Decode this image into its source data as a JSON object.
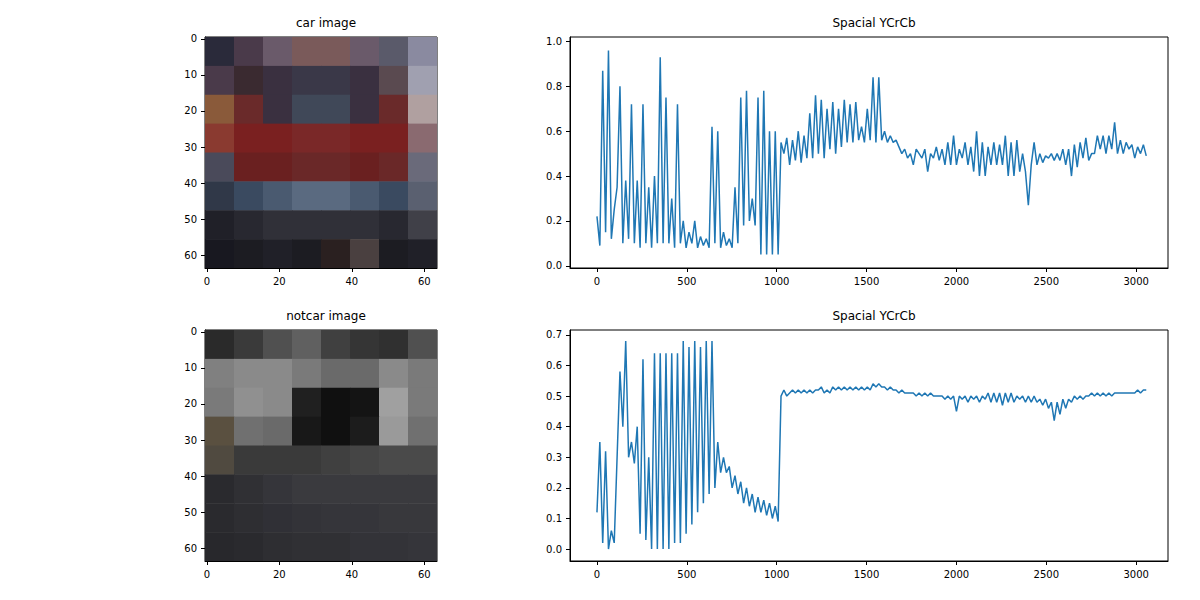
{
  "chart_data": [
    {
      "type": "image",
      "title": "car image",
      "xlim": [
        -0.5,
        63.5
      ],
      "ylim": [
        63.5,
        -0.5
      ],
      "xticks": [
        0,
        20,
        40,
        60
      ],
      "yticks": [
        0,
        10,
        20,
        30,
        40,
        50,
        60
      ],
      "pixels": [
        [
          "#2a2a3a",
          "#4a3a4a",
          "#6a5a6a",
          "#7a5a5a",
          "#7a5a5a",
          "#6a5a6a",
          "#5a5a6a",
          "#8a8aa0"
        ],
        [
          "#4a3a4a",
          "#3a2a30",
          "#3a3040",
          "#3a3848",
          "#3a3848",
          "#3a3040",
          "#5a4a50",
          "#a0a0b0"
        ],
        [
          "#8a5a3a",
          "#6a2a2a",
          "#3a3040",
          "#404858",
          "#404858",
          "#3a3040",
          "#6a2a2a",
          "#b0a0a0"
        ],
        [
          "#8a3a30",
          "#7a2020",
          "#7a2020",
          "#7a2828",
          "#7a2828",
          "#7a2020",
          "#7a2020",
          "#8a6a70"
        ],
        [
          "#4a4a5a",
          "#6a2020",
          "#6a2020",
          "#6a2828",
          "#6a2828",
          "#6a2020",
          "#6a2828",
          "#6a6a7a"
        ],
        [
          "#303848",
          "#3a4a60",
          "#4a5a70",
          "#5a6a80",
          "#5a6a80",
          "#4a5a70",
          "#3a4a60",
          "#5a6070"
        ],
        [
          "#202028",
          "#282830",
          "#303038",
          "#303038",
          "#303038",
          "#303038",
          "#282830",
          "#404048"
        ],
        [
          "#181820",
          "#1c1c22",
          "#202028",
          "#1c1c22",
          "#2a2020",
          "#4a4040",
          "#1c1c22",
          "#202028"
        ]
      ]
    },
    {
      "type": "line",
      "title": "Spacial YCrCb",
      "color": "#1f77b4",
      "grid": false,
      "xlim": [
        -150,
        3177
      ],
      "ylim": [
        -0.01,
        1.02
      ],
      "xticks": [
        0,
        500,
        1000,
        1500,
        2000,
        2500,
        3000
      ],
      "yticks": [
        {
          "value": 0,
          "label": "0.0"
        },
        0.2,
        0.4,
        0.6,
        0.8,
        {
          "value": 1,
          "label": "1.0"
        }
      ],
      "x": [
        0,
        16,
        32,
        48,
        64,
        80,
        96,
        112,
        128,
        144,
        160,
        176,
        192,
        208,
        224,
        240,
        256,
        272,
        288,
        304,
        320,
        336,
        352,
        368,
        384,
        400,
        416,
        432,
        448,
        464,
        480,
        496,
        512,
        528,
        544,
        560,
        576,
        592,
        608,
        624,
        640,
        656,
        672,
        688,
        704,
        720,
        736,
        752,
        768,
        784,
        800,
        816,
        832,
        848,
        864,
        880,
        896,
        912,
        928,
        944,
        960,
        976,
        992,
        1008,
        1024,
        1040,
        1056,
        1072,
        1088,
        1104,
        1120,
        1136,
        1152,
        1168,
        1184,
        1200,
        1216,
        1232,
        1248,
        1264,
        1280,
        1296,
        1312,
        1328,
        1344,
        1360,
        1376,
        1392,
        1408,
        1424,
        1440,
        1456,
        1472,
        1488,
        1504,
        1520,
        1536,
        1552,
        1568,
        1584,
        1600,
        1616,
        1632,
        1648,
        1664,
        1680,
        1696,
        1712,
        1728,
        1744,
        1760,
        1776,
        1792,
        1808,
        1824,
        1840,
        1856,
        1872,
        1888,
        1904,
        1920,
        1936,
        1952,
        1968,
        1984,
        2000,
        2016,
        2032,
        2048,
        2064,
        2080,
        2096,
        2112,
        2128,
        2144,
        2160,
        2176,
        2192,
        2208,
        2224,
        2240,
        2256,
        2272,
        2288,
        2304,
        2320,
        2336,
        2352,
        2368,
        2384,
        2400,
        2416,
        2432,
        2448,
        2464,
        2480,
        2496,
        2512,
        2528,
        2544,
        2560,
        2576,
        2592,
        2608,
        2624,
        2640,
        2656,
        2672,
        2688,
        2704,
        2720,
        2736,
        2752,
        2768,
        2784,
        2800,
        2816,
        2832,
        2848,
        2864,
        2880,
        2896,
        2912,
        2928,
        2944,
        2960,
        2976,
        2992,
        3008,
        3024,
        3040,
        3056
      ],
      "values": [
        0.22,
        0.09,
        0.87,
        0.15,
        0.96,
        0.12,
        0.25,
        0.35,
        0.8,
        0.1,
        0.38,
        0.12,
        0.72,
        0.1,
        0.38,
        0.08,
        0.72,
        0.1,
        0.35,
        0.08,
        0.4,
        0.1,
        0.93,
        0.1,
        0.75,
        0.1,
        0.3,
        0.08,
        0.72,
        0.1,
        0.2,
        0.08,
        0.15,
        0.1,
        0.2,
        0.08,
        0.13,
        0.09,
        0.12,
        0.08,
        0.62,
        0.1,
        0.6,
        0.08,
        0.15,
        0.09,
        0.12,
        0.08,
        0.35,
        0.1,
        0.75,
        0.18,
        0.78,
        0.2,
        0.3,
        0.18,
        0.75,
        0.05,
        0.78,
        0.05,
        0.6,
        0.05,
        0.6,
        0.05,
        0.55,
        0.5,
        0.57,
        0.45,
        0.56,
        0.47,
        0.6,
        0.46,
        0.58,
        0.48,
        0.68,
        0.48,
        0.76,
        0.5,
        0.74,
        0.48,
        0.7,
        0.52,
        0.73,
        0.5,
        0.7,
        0.53,
        0.74,
        0.55,
        0.72,
        0.55,
        0.73,
        0.56,
        0.62,
        0.55,
        0.7,
        0.56,
        0.84,
        0.55,
        0.84,
        0.56,
        0.6,
        0.55,
        0.58,
        0.55,
        0.56,
        0.53,
        0.5,
        0.52,
        0.48,
        0.5,
        0.45,
        0.52,
        0.5,
        0.48,
        0.52,
        0.42,
        0.5,
        0.48,
        0.53,
        0.47,
        0.52,
        0.45,
        0.55,
        0.45,
        0.58,
        0.45,
        0.52,
        0.48,
        0.55,
        0.45,
        0.53,
        0.42,
        0.6,
        0.4,
        0.55,
        0.4,
        0.53,
        0.45,
        0.55,
        0.45,
        0.54,
        0.45,
        0.58,
        0.4,
        0.55,
        0.4,
        0.56,
        0.42,
        0.5,
        0.42,
        0.27,
        0.45,
        0.55,
        0.45,
        0.5,
        0.46,
        0.49,
        0.48,
        0.5,
        0.47,
        0.5,
        0.47,
        0.52,
        0.45,
        0.52,
        0.4,
        0.54,
        0.44,
        0.55,
        0.48,
        0.57,
        0.47,
        0.5,
        0.5,
        0.58,
        0.52,
        0.58,
        0.5,
        0.58,
        0.52,
        0.64,
        0.5,
        0.56,
        0.5,
        0.55,
        0.52,
        0.54,
        0.48,
        0.53,
        0.5,
        0.54,
        0.49
      ]
    },
    {
      "type": "image",
      "title": "notcar image",
      "xlim": [
        -0.5,
        63.5
      ],
      "ylim": [
        63.5,
        -0.5
      ],
      "xticks": [
        0,
        20,
        40,
        60
      ],
      "yticks": [
        0,
        10,
        20,
        30,
        40,
        50,
        60
      ],
      "pixels": [
        [
          "#2a2a2a",
          "#3a3a3a",
          "#505050",
          "#606060",
          "#404040",
          "#353535",
          "#303030",
          "#505050"
        ],
        [
          "#808080",
          "#8a8a8a",
          "#8a8a8a",
          "#7a7a7a",
          "#6a6a6a",
          "#6a6a6a",
          "#8a8a8a",
          "#7a7a7a"
        ],
        [
          "#7a7a7a",
          "#909090",
          "#8a8a8a",
          "#202020",
          "#101010",
          "#141414",
          "#a0a0a0",
          "#7a7a7a"
        ],
        [
          "#5a5040",
          "#707070",
          "#6a6a6a",
          "#181818",
          "#101010",
          "#1c1c1c",
          "#9a9a9a",
          "#707070"
        ],
        [
          "#504a40",
          "#3a3a3a",
          "#3a3a3a",
          "#3a3a3a",
          "#404040",
          "#454545",
          "#4a4a4a",
          "#4a4a4a"
        ],
        [
          "#2a2a2e",
          "#303034",
          "#35353a",
          "#3a3a3e",
          "#3a3a3e",
          "#3a3a3e",
          "#3a3a3e",
          "#3a3a3e"
        ],
        [
          "#2a2a2e",
          "#2e2e32",
          "#303036",
          "#333338",
          "#35353a",
          "#35353a",
          "#38383c",
          "#38383c"
        ],
        [
          "#28282c",
          "#2a2a2e",
          "#2e2e32",
          "#303034",
          "#303034",
          "#333338",
          "#333338",
          "#35353a"
        ]
      ]
    },
    {
      "type": "line",
      "title": "Spacial YCrCb",
      "color": "#1f77b4",
      "grid": false,
      "xlim": [
        -150,
        3177
      ],
      "ylim": [
        -0.039,
        0.716
      ],
      "xticks": [
        0,
        500,
        1000,
        1500,
        2000,
        2500,
        3000
      ],
      "yticks": [
        {
          "value": 0,
          "label": "0.0"
        },
        0.1,
        0.2,
        0.3,
        0.4,
        0.5,
        0.6,
        0.7
      ],
      "x": [
        0,
        16,
        32,
        48,
        64,
        80,
        96,
        112,
        128,
        144,
        160,
        176,
        192,
        208,
        224,
        240,
        256,
        272,
        288,
        304,
        320,
        336,
        352,
        368,
        384,
        400,
        416,
        432,
        448,
        464,
        480,
        496,
        512,
        528,
        544,
        560,
        576,
        592,
        608,
        624,
        640,
        656,
        672,
        688,
        704,
        720,
        736,
        752,
        768,
        784,
        800,
        816,
        832,
        848,
        864,
        880,
        896,
        912,
        928,
        944,
        960,
        976,
        992,
        1008,
        1024,
        1040,
        1056,
        1072,
        1088,
        1104,
        1120,
        1136,
        1152,
        1168,
        1184,
        1200,
        1216,
        1232,
        1248,
        1264,
        1280,
        1296,
        1312,
        1328,
        1344,
        1360,
        1376,
        1392,
        1408,
        1424,
        1440,
        1456,
        1472,
        1488,
        1504,
        1520,
        1536,
        1552,
        1568,
        1584,
        1600,
        1616,
        1632,
        1648,
        1664,
        1680,
        1696,
        1712,
        1728,
        1744,
        1760,
        1776,
        1792,
        1808,
        1824,
        1840,
        1856,
        1872,
        1888,
        1904,
        1920,
        1936,
        1952,
        1968,
        1984,
        2000,
        2016,
        2032,
        2048,
        2064,
        2080,
        2096,
        2112,
        2128,
        2144,
        2160,
        2176,
        2192,
        2208,
        2224,
        2240,
        2256,
        2272,
        2288,
        2304,
        2320,
        2336,
        2352,
        2368,
        2384,
        2400,
        2416,
        2432,
        2448,
        2464,
        2480,
        2496,
        2512,
        2528,
        2544,
        2560,
        2576,
        2592,
        2608,
        2624,
        2640,
        2656,
        2672,
        2688,
        2704,
        2720,
        2736,
        2752,
        2768,
        2784,
        2800,
        2816,
        2832,
        2848,
        2864,
        2880,
        2896,
        2912,
        2928,
        2944,
        2960,
        2976,
        2992,
        3008,
        3024,
        3040,
        3056
      ],
      "values": [
        0.12,
        0.35,
        0.02,
        0.32,
        0.0,
        0.06,
        0.02,
        0.3,
        0.58,
        0.4,
        0.68,
        0.3,
        0.35,
        0.28,
        0.4,
        0.05,
        0.62,
        0.03,
        0.3,
        0.0,
        0.64,
        0.0,
        0.64,
        0.0,
        0.64,
        0.0,
        0.64,
        0.02,
        0.64,
        0.02,
        0.68,
        0.05,
        0.66,
        0.08,
        0.68,
        0.12,
        0.66,
        0.15,
        0.68,
        0.18,
        0.68,
        0.2,
        0.35,
        0.25,
        0.3,
        0.25,
        0.27,
        0.2,
        0.24,
        0.18,
        0.22,
        0.15,
        0.2,
        0.14,
        0.18,
        0.12,
        0.17,
        0.12,
        0.16,
        0.11,
        0.15,
        0.1,
        0.14,
        0.09,
        0.5,
        0.52,
        0.5,
        0.51,
        0.52,
        0.51,
        0.52,
        0.51,
        0.52,
        0.51,
        0.52,
        0.51,
        0.52,
        0.52,
        0.53,
        0.51,
        0.52,
        0.51,
        0.53,
        0.52,
        0.53,
        0.52,
        0.53,
        0.52,
        0.53,
        0.52,
        0.53,
        0.52,
        0.53,
        0.52,
        0.53,
        0.52,
        0.54,
        0.53,
        0.54,
        0.53,
        0.53,
        0.52,
        0.53,
        0.52,
        0.52,
        0.51,
        0.52,
        0.51,
        0.51,
        0.51,
        0.51,
        0.5,
        0.51,
        0.5,
        0.51,
        0.5,
        0.51,
        0.5,
        0.5,
        0.5,
        0.5,
        0.49,
        0.5,
        0.49,
        0.5,
        0.45,
        0.5,
        0.49,
        0.5,
        0.48,
        0.5,
        0.49,
        0.5,
        0.48,
        0.5,
        0.49,
        0.51,
        0.48,
        0.51,
        0.48,
        0.51,
        0.47,
        0.51,
        0.48,
        0.51,
        0.48,
        0.5,
        0.49,
        0.5,
        0.48,
        0.5,
        0.48,
        0.5,
        0.48,
        0.49,
        0.47,
        0.49,
        0.46,
        0.48,
        0.42,
        0.48,
        0.44,
        0.49,
        0.46,
        0.49,
        0.48,
        0.5,
        0.49,
        0.5,
        0.49,
        0.5,
        0.5,
        0.51,
        0.5,
        0.51,
        0.5,
        0.51,
        0.5,
        0.51,
        0.5,
        0.51,
        0.51,
        0.51,
        0.51,
        0.51,
        0.51,
        0.51,
        0.51,
        0.52,
        0.51,
        0.52,
        0.52
      ]
    }
  ]
}
